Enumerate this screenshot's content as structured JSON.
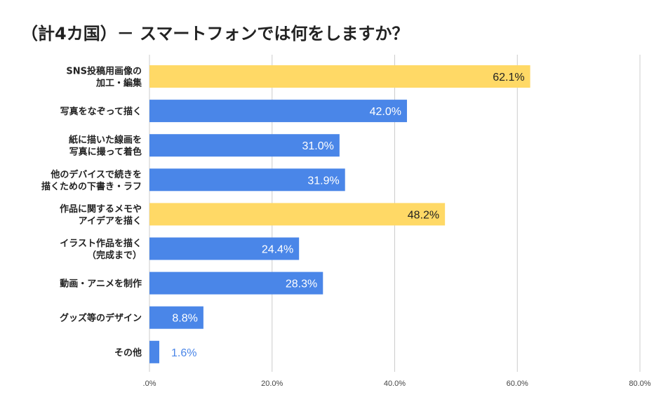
{
  "title": "（計4カ国）－ スマートフォンでは何をしますか？",
  "colors": {
    "blue": "#4a86e8",
    "yellow": "#ffd966",
    "grid": "#cccccc",
    "text_white": "#ffffff",
    "text_dark": "#222222"
  },
  "chart_data": {
    "type": "bar",
    "orientation": "horizontal",
    "title": "（計4カ国）－ スマートフォンでは何をしますか？",
    "categories": [
      [
        "SNS投稿用画像の",
        "加工・編集"
      ],
      [
        "写真をなぞって描く"
      ],
      [
        "紙に描いた線画を",
        "写真に撮って着色"
      ],
      [
        "他のデバイスで続きを",
        "描くための下書き・ラフ"
      ],
      [
        "作品に関するメモや",
        "アイデアを描く"
      ],
      [
        "イラスト作品を描く",
        "（完成まで）"
      ],
      [
        "動画・アニメを制作"
      ],
      [
        "グッズ等のデザイン"
      ],
      [
        "その他"
      ]
    ],
    "values": [
      62.1,
      42.0,
      31.0,
      31.9,
      48.2,
      24.4,
      28.3,
      8.8,
      1.6
    ],
    "value_labels": [
      "62.1%",
      "42.0%",
      "31.0%",
      "31.9%",
      "48.2%",
      "24.4%",
      "28.3%",
      "8.8%",
      "1.6%"
    ],
    "bar_colors": [
      "yellow",
      "blue",
      "blue",
      "blue",
      "yellow",
      "blue",
      "blue",
      "blue",
      "blue"
    ],
    "label_dark": [
      true,
      false,
      false,
      false,
      true,
      false,
      false,
      false,
      true
    ],
    "label_outside": [
      false,
      false,
      false,
      false,
      false,
      false,
      false,
      false,
      true
    ],
    "xlim": [
      0,
      80
    ],
    "xticks": [
      0,
      20,
      40,
      60,
      80
    ],
    "xtick_labels": [
      ".0%",
      "20.0%",
      "40.0%",
      "60.0%",
      "80.0%"
    ],
    "grid": true
  }
}
